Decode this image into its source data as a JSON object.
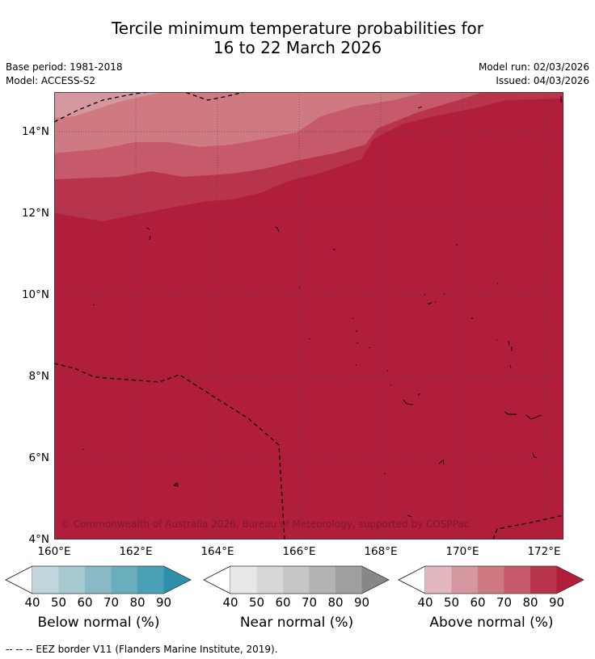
{
  "title": {
    "line1": "Tercile minimum temperature probabilities for",
    "line2": "16 to 22 March 2026"
  },
  "meta": {
    "base_period": "Base period: 1981-2018",
    "model": "Model: ACCESS-S2",
    "model_run": "Model run: 02/03/2026",
    "issued": "Issued: 04/03/2026"
  },
  "map": {
    "lat_labels": [
      "14°N",
      "12°N",
      "10°N",
      "8°N",
      "6°N",
      "4°N"
    ],
    "lon_labels": [
      "160°E",
      "162°E",
      "164°E",
      "166°E",
      "168°E",
      "170°E",
      "172°E"
    ],
    "copyright": "© Commonwealth of Australia 2026, Bureau of Meteorology, supported by COSPPac"
  },
  "colorbars": [
    {
      "title": "Below normal (%)",
      "ticks": [
        "40",
        "50",
        "60",
        "70",
        "80",
        "90"
      ],
      "colors": [
        "#c0d6dd",
        "#a6c9d0",
        "#88b9c5",
        "#6aaebe",
        "#4aa0b4",
        "#2e8fa6"
      ]
    },
    {
      "title": "Near normal (%)",
      "ticks": [
        "40",
        "50",
        "60",
        "70",
        "80",
        "90"
      ],
      "colors": [
        "#e8e8e8",
        "#d7d7d7",
        "#c6c6c6",
        "#b3b3b3",
        "#9f9f9f",
        "#878787"
      ]
    },
    {
      "title": "Above normal (%)",
      "ticks": [
        "40",
        "50",
        "60",
        "70",
        "80",
        "90"
      ],
      "colors": [
        "#e3b8bd",
        "#d5979f",
        "#cf7980",
        "#c6596a",
        "#b8344a",
        "#b01e3a"
      ]
    }
  ],
  "footnote": "--  --  -- EEZ border V11 (Flanders Marine Institute, 2019)."
}
